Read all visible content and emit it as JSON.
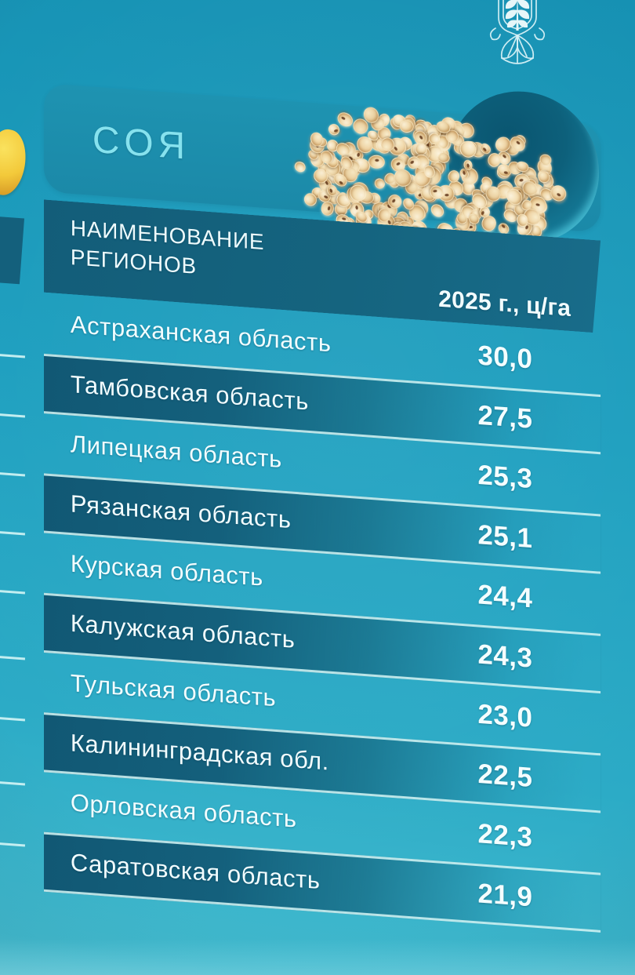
{
  "title": {
    "label": "СОЯ"
  },
  "emblem": {
    "name": "ministry-of-agriculture-emblem"
  },
  "table": {
    "header": {
      "name_line1": "НАИМЕНОВАНИЕ",
      "name_line2": "РЕГИОНОВ",
      "value_column": "2025 г., ц/га"
    },
    "rows": [
      {
        "region": "Астраханская область",
        "value": "30,0",
        "highlighted": false
      },
      {
        "region": "Тамбовская область",
        "value": "27,5",
        "highlighted": true
      },
      {
        "region": "Липецкая область",
        "value": "25,3",
        "highlighted": false
      },
      {
        "region": "Рязанская область",
        "value": "25,1",
        "highlighted": true
      },
      {
        "region": "Курская область",
        "value": "24,4",
        "highlighted": false
      },
      {
        "region": "Калужская область",
        "value": "24,3",
        "highlighted": true
      },
      {
        "region": "Тульская область",
        "value": "23,0",
        "highlighted": false
      },
      {
        "region": "Калининградская обл.",
        "value": "22,5",
        "highlighted": true
      },
      {
        "region": "Орловская область",
        "value": "22,3",
        "highlighted": false
      },
      {
        "region": "Саратовская область",
        "value": "21,9",
        "highlighted": true
      }
    ]
  },
  "chart_data": {
    "type": "table",
    "title": "СОЯ",
    "columns": [
      "НАИМЕНОВАНИЕ РЕГИОНОВ",
      "2025 г., ц/га"
    ],
    "categories": [
      "Астраханская область",
      "Тамбовская область",
      "Липецкая область",
      "Рязанская область",
      "Курская область",
      "Калужская область",
      "Тульская область",
      "Калининградская обл.",
      "Орловская область",
      "Саратовская область"
    ],
    "values": [
      30.0,
      27.5,
      25.3,
      25.1,
      24.4,
      24.3,
      23.0,
      22.5,
      22.3,
      21.9
    ],
    "unit": "ц/га",
    "year": "2025"
  },
  "colors": {
    "background": "#1d9fbf",
    "banner": "#1b89a8",
    "band": "#14607c",
    "separator_line": "#d2f4f4",
    "title_text": "#86e2ee",
    "body_text": "#f2fdff",
    "circle": "#0d607b",
    "soybean": "#f0d6a4",
    "adjacent_yellow": "#f3c93a"
  }
}
